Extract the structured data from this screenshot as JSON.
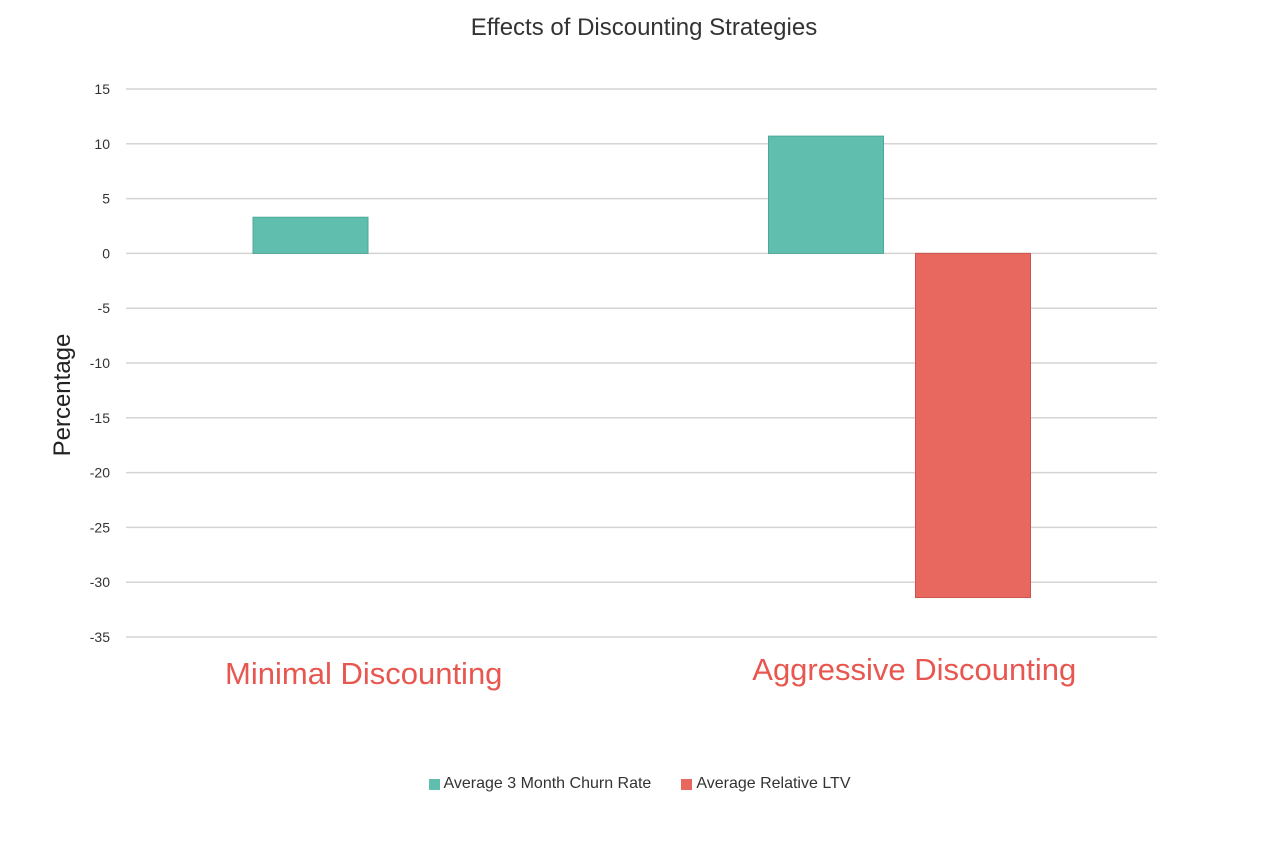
{
  "chart_data": {
    "type": "bar",
    "title": "Effects of Discounting Strategies",
    "xlabel": "",
    "ylabel": "Percentage",
    "ylim": [
      -35,
      15
    ],
    "yticks": [
      15,
      10,
      5,
      0,
      -5,
      -10,
      -15,
      -20,
      -25,
      -30,
      -35
    ],
    "grid": true,
    "legend_position": "bottom",
    "categories": [
      "Minimal Discounting",
      "Aggressive Discounting"
    ],
    "category_label_color": "#e8564f",
    "series": [
      {
        "name": "Average 3 Month Churn Rate",
        "color": "#5fbead",
        "values": [
          3.3,
          10.7
        ]
      },
      {
        "name": "Average Relative LTV",
        "color": "#e8675f",
        "values": [
          0,
          -31.4
        ]
      }
    ]
  }
}
